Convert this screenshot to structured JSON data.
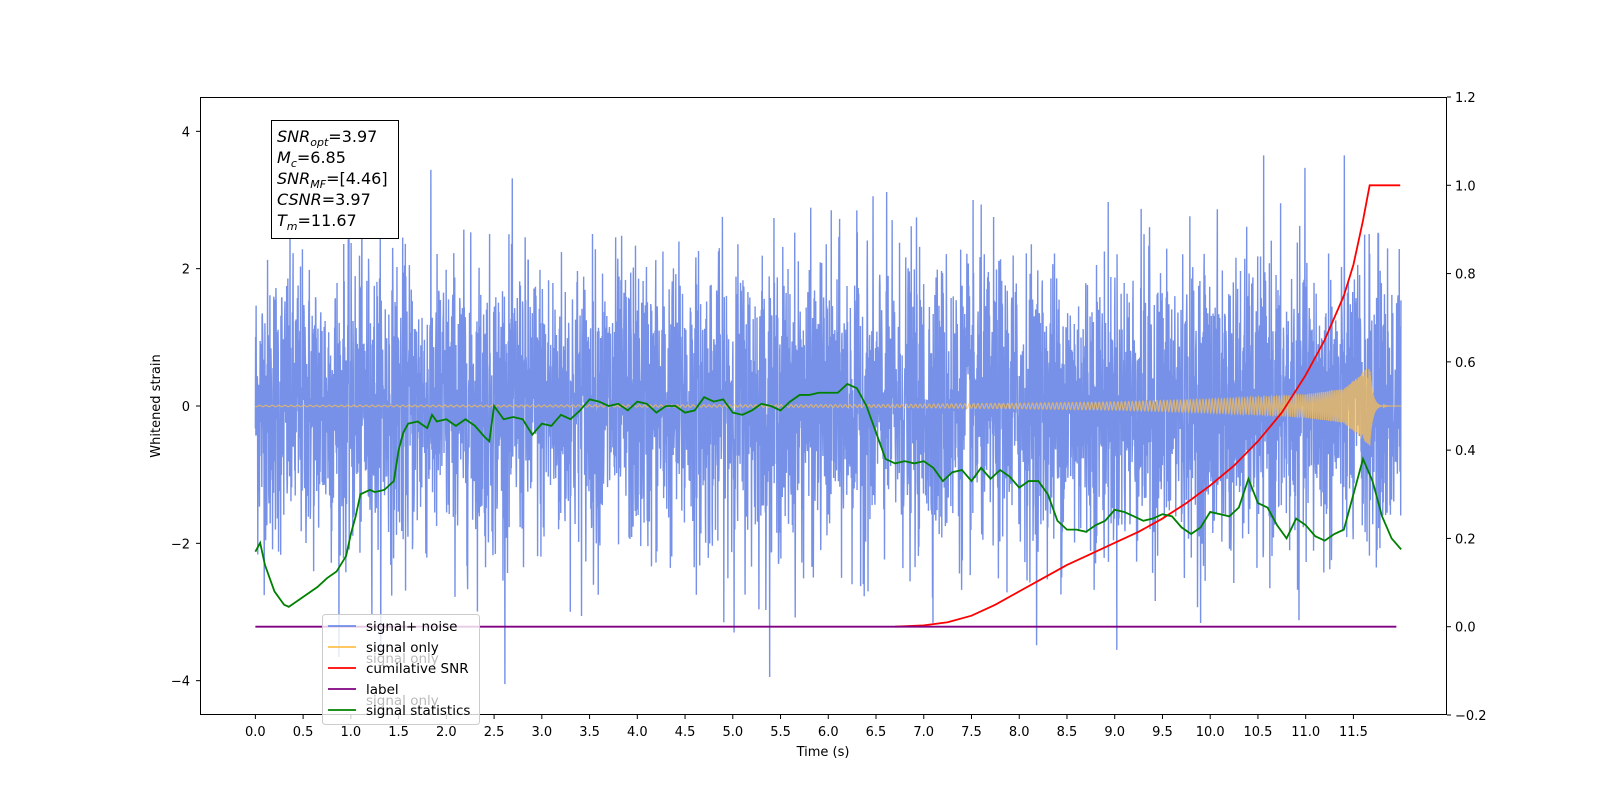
{
  "chart_data": {
    "type": "line",
    "title": "",
    "xlabel": "Time (s)",
    "ylabel": "Whitened strain",
    "ylabel_right": "",
    "xlim": [
      -0.58,
      12.48
    ],
    "ylim": [
      -4.5,
      4.5
    ],
    "ylim_right": [
      -0.2,
      1.2
    ],
    "x_ticks": [
      0.0,
      0.5,
      1.0,
      1.5,
      2.0,
      2.5,
      3.0,
      3.5,
      4.0,
      4.5,
      5.0,
      5.5,
      6.0,
      6.5,
      7.0,
      7.5,
      8.0,
      8.5,
      9.0,
      9.5,
      10.0,
      10.5,
      11.0,
      11.5
    ],
    "x_tick_labels": [
      "0.0",
      "0.5",
      "1.0",
      "1.5",
      "2.0",
      "2.5",
      "3.0",
      "3.5",
      "4.0",
      "4.5",
      "5.0",
      "5.5",
      "6.0",
      "6.5",
      "7.0",
      "7.5",
      "8.0",
      "8.5",
      "9.0",
      "9.5",
      "10.0",
      "10.5",
      "11.0",
      "11.5"
    ],
    "y_ticks": [
      -4,
      -2,
      0,
      2,
      4
    ],
    "y_tick_labels": [
      "−4",
      "−2",
      "0",
      "2",
      "4"
    ],
    "y_ticks_right": [
      -0.2,
      0.0,
      0.2,
      0.4,
      0.6,
      0.8,
      1.0,
      1.2
    ],
    "y_tick_labels_right": [
      "−0.2",
      "0.0",
      "0.2",
      "0.4",
      "0.6",
      "0.8",
      "1.0",
      "1.2"
    ],
    "grid": false,
    "legend": {
      "placement": "lower-left",
      "entries": [
        {
          "label": "signal+ noise",
          "color": "#6f8be6"
        },
        {
          "label": "signal only",
          "color": "#ffc04d"
        },
        {
          "label": "cumilative SNR",
          "color": "#ff0000"
        },
        {
          "label": "label",
          "color": "#800080"
        },
        {
          "label": "signal statistics",
          "color": "#008000"
        }
      ],
      "ghost_labels": [
        "signal only",
        "signal only"
      ]
    },
    "annotation": {
      "lines": [
        {
          "base": "SNR",
          "sub": "opt",
          "value": "=3.97"
        },
        {
          "base": "M",
          "sub": "c",
          "value": "=6.85"
        },
        {
          "base": "SNR",
          "sub": "MF",
          "value": "=[4.46]"
        },
        {
          "base": "CSNR",
          "sub": "",
          "value": "=3.97"
        },
        {
          "base": "T",
          "sub": "m",
          "value": "=11.67"
        }
      ]
    },
    "series": [
      {
        "name": "signal+ noise",
        "axis": "left",
        "color": "#6f8be6",
        "style": "noise",
        "x_range": [
          0.0,
          12.0
        ],
        "sigma": 1.0,
        "envelope_min_max": [
          -4.05,
          3.65
        ]
      },
      {
        "name": "signal only",
        "axis": "left",
        "color": "#ffc04d",
        "style": "chirp",
        "x_range": [
          0.0,
          12.0
        ],
        "merger_time": 11.67,
        "amplitude_points": [
          [
            0.0,
            0.01
          ],
          [
            6.5,
            0.02
          ],
          [
            8.0,
            0.04
          ],
          [
            9.0,
            0.06
          ],
          [
            10.0,
            0.1
          ],
          [
            10.5,
            0.13
          ],
          [
            11.0,
            0.17
          ],
          [
            11.4,
            0.25
          ],
          [
            11.6,
            0.5
          ],
          [
            11.67,
            0.58
          ]
        ]
      },
      {
        "name": "cumilative SNR",
        "axis": "right",
        "color": "#ff0000",
        "x": [
          6.7,
          7.0,
          7.25,
          7.5,
          7.75,
          8.0,
          8.25,
          8.5,
          8.75,
          9.0,
          9.25,
          9.5,
          9.75,
          10.0,
          10.25,
          10.5,
          10.75,
          11.0,
          11.2,
          11.4,
          11.5,
          11.6,
          11.67,
          11.8,
          11.99
        ],
        "y": [
          0.0,
          0.003,
          0.01,
          0.025,
          0.05,
          0.08,
          0.11,
          0.14,
          0.165,
          0.19,
          0.215,
          0.245,
          0.28,
          0.32,
          0.365,
          0.42,
          0.485,
          0.57,
          0.65,
          0.75,
          0.82,
          0.92,
          1.0,
          1.0,
          1.0
        ]
      },
      {
        "name": "label",
        "axis": "right",
        "color": "#800080",
        "x": [
          0.0,
          11.95
        ],
        "y": [
          0.0,
          0.0
        ]
      },
      {
        "name": "signal statistics",
        "axis": "right",
        "color": "#008000",
        "x": [
          0.0,
          0.05,
          0.1,
          0.2,
          0.3,
          0.35,
          0.45,
          0.55,
          0.65,
          0.75,
          0.85,
          0.95,
          1.0,
          1.05,
          1.1,
          1.2,
          1.25,
          1.35,
          1.45,
          1.5,
          1.55,
          1.6,
          1.7,
          1.8,
          1.85,
          1.9,
          2.0,
          2.1,
          2.2,
          2.3,
          2.4,
          2.45,
          2.5,
          2.6,
          2.7,
          2.8,
          2.9,
          3.0,
          3.1,
          3.2,
          3.3,
          3.4,
          3.5,
          3.6,
          3.7,
          3.8,
          3.9,
          4.0,
          4.1,
          4.2,
          4.3,
          4.4,
          4.5,
          4.6,
          4.7,
          4.8,
          4.9,
          5.0,
          5.1,
          5.2,
          5.3,
          5.4,
          5.5,
          5.6,
          5.7,
          5.8,
          5.9,
          6.0,
          6.1,
          6.2,
          6.3,
          6.4,
          6.5,
          6.6,
          6.7,
          6.8,
          6.9,
          7.0,
          7.1,
          7.2,
          7.3,
          7.4,
          7.5,
          7.6,
          7.7,
          7.8,
          7.9,
          8.0,
          8.1,
          8.2,
          8.3,
          8.4,
          8.5,
          8.6,
          8.7,
          8.8,
          8.9,
          9.0,
          9.1,
          9.2,
          9.3,
          9.4,
          9.5,
          9.6,
          9.7,
          9.8,
          9.9,
          10.0,
          10.1,
          10.2,
          10.3,
          10.4,
          10.5,
          10.6,
          10.7,
          10.8,
          10.9,
          11.0,
          11.1,
          11.2,
          11.3,
          11.4,
          11.5,
          11.6,
          11.7,
          11.8,
          11.9,
          12.0
        ],
        "y": [
          0.17,
          0.19,
          0.14,
          0.08,
          0.05,
          0.045,
          0.06,
          0.075,
          0.09,
          0.11,
          0.125,
          0.16,
          0.21,
          0.25,
          0.3,
          0.31,
          0.305,
          0.31,
          0.33,
          0.4,
          0.44,
          0.46,
          0.465,
          0.45,
          0.48,
          0.465,
          0.47,
          0.455,
          0.47,
          0.455,
          0.43,
          0.42,
          0.5,
          0.47,
          0.475,
          0.47,
          0.435,
          0.46,
          0.455,
          0.48,
          0.47,
          0.49,
          0.515,
          0.51,
          0.5,
          0.505,
          0.49,
          0.51,
          0.505,
          0.485,
          0.5,
          0.5,
          0.485,
          0.49,
          0.52,
          0.51,
          0.515,
          0.485,
          0.48,
          0.49,
          0.505,
          0.5,
          0.49,
          0.51,
          0.525,
          0.525,
          0.53,
          0.53,
          0.53,
          0.55,
          0.54,
          0.5,
          0.44,
          0.38,
          0.37,
          0.375,
          0.37,
          0.375,
          0.36,
          0.33,
          0.35,
          0.355,
          0.33,
          0.36,
          0.335,
          0.355,
          0.34,
          0.315,
          0.33,
          0.33,
          0.3,
          0.24,
          0.22,
          0.22,
          0.215,
          0.23,
          0.24,
          0.265,
          0.26,
          0.25,
          0.24,
          0.245,
          0.255,
          0.25,
          0.225,
          0.21,
          0.225,
          0.26,
          0.255,
          0.25,
          0.27,
          0.335,
          0.28,
          0.27,
          0.23,
          0.2,
          0.245,
          0.23,
          0.205,
          0.195,
          0.21,
          0.22,
          0.3,
          0.38,
          0.33,
          0.25,
          0.2,
          0.175
        ]
      }
    ]
  }
}
